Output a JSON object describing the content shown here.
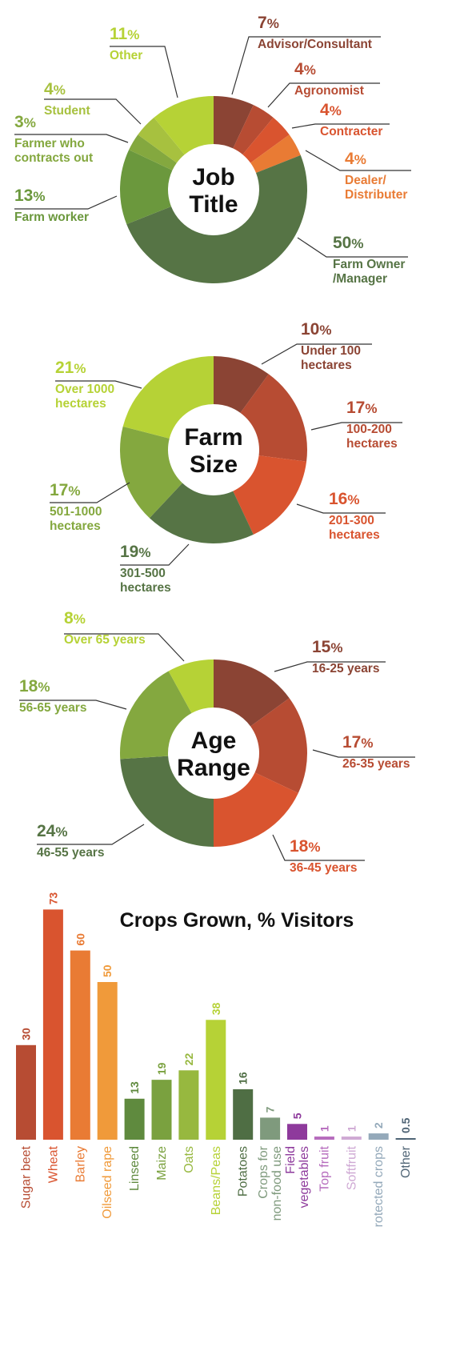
{
  "colors": {
    "dark_brown": "#8b4434",
    "rust": "#b74c33",
    "red_orange": "#d9542f",
    "orange": "#e97b34",
    "light_orange": "#f09a3a",
    "dark_green": "#567445",
    "mid_green": "#6b983d",
    "olive_green": "#84a83f",
    "yellow_green": "#a7c13f",
    "lime": "#b6d236"
  },
  "chart_data": [
    {
      "type": "pie",
      "title_lines": [
        "Job",
        "Title"
      ],
      "slices": [
        {
          "label_lines": [
            "Advisor/Consultant"
          ],
          "pct_num": "7",
          "value": 7,
          "color": "#8b4434"
        },
        {
          "label_lines": [
            "Agronomist"
          ],
          "pct_num": "4",
          "value": 4,
          "color": "#b74c33"
        },
        {
          "label_lines": [
            "Contracter"
          ],
          "pct_num": "4",
          "value": 4,
          "color": "#d9542f"
        },
        {
          "label_lines": [
            "Dealer/",
            "Distributer"
          ],
          "pct_num": "4",
          "value": 4,
          "color": "#e97b34"
        },
        {
          "label_lines": [
            "Farm Owner",
            "/Manager"
          ],
          "pct_num": "50",
          "value": 50,
          "color": "#567445"
        },
        {
          "label_lines": [
            "Farm worker"
          ],
          "pct_num": "13",
          "value": 13,
          "color": "#6b983d"
        },
        {
          "label_lines": [
            "Farmer who",
            "contracts out"
          ],
          "pct_num": "3",
          "value": 3,
          "color": "#84a83f"
        },
        {
          "label_lines": [
            "Student"
          ],
          "pct_num": "4",
          "value": 4,
          "color": "#a7c13f"
        },
        {
          "label_lines": [
            "Other"
          ],
          "pct_num": "11",
          "value": 11,
          "color": "#b6d236"
        }
      ]
    },
    {
      "type": "pie",
      "title_lines": [
        "Farm",
        "Size"
      ],
      "slices": [
        {
          "label_lines": [
            "Under 100",
            "hectares"
          ],
          "pct_num": "10",
          "value": 10,
          "color": "#8b4434"
        },
        {
          "label_lines": [
            "100-200",
            "hectares"
          ],
          "pct_num": "17",
          "value": 17,
          "color": "#b74c33"
        },
        {
          "label_lines": [
            "201-300",
            "hectares"
          ],
          "pct_num": "16",
          "value": 16,
          "color": "#d9542f"
        },
        {
          "label_lines": [
            "301-500",
            "hectares"
          ],
          "pct_num": "19",
          "value": 19,
          "color": "#567445"
        },
        {
          "label_lines": [
            "501-1000",
            "hectares"
          ],
          "pct_num": "17",
          "value": 17,
          "color": "#84a83f"
        },
        {
          "label_lines": [
            "Over 1000",
            "hectares"
          ],
          "pct_num": "21",
          "value": 21,
          "color": "#b6d236"
        }
      ]
    },
    {
      "type": "pie",
      "title_lines": [
        "Age",
        "Range"
      ],
      "slices": [
        {
          "label_lines": [
            "16-25 years"
          ],
          "pct_num": "15",
          "value": 15,
          "color": "#8b4434"
        },
        {
          "label_lines": [
            "26-35 years"
          ],
          "pct_num": "17",
          "value": 17,
          "color": "#b74c33"
        },
        {
          "label_lines": [
            "36-45 years"
          ],
          "pct_num": "18",
          "value": 18,
          "color": "#d9542f"
        },
        {
          "label_lines": [
            "46-55 years"
          ],
          "pct_num": "24",
          "value": 24,
          "color": "#567445"
        },
        {
          "label_lines": [
            "56-65 years"
          ],
          "pct_num": "18",
          "value": 18,
          "color": "#84a83f"
        },
        {
          "label_lines": [
            "Over 65 years"
          ],
          "pct_num": "8",
          "value": 8,
          "color": "#b6d236"
        }
      ]
    },
    {
      "type": "bar",
      "title": "Crops Grown, % Visitors",
      "ylim": [
        0,
        80
      ],
      "bars": [
        {
          "category_lines": [
            "Sugar beet"
          ],
          "value": 30,
          "value_label": "30",
          "color": "#b74c33"
        },
        {
          "category_lines": [
            "Wheat"
          ],
          "value": 73,
          "value_label": "73",
          "color": "#d9542f"
        },
        {
          "category_lines": [
            "Barley"
          ],
          "value": 60,
          "value_label": "60",
          "color": "#e97b34"
        },
        {
          "category_lines": [
            "Oilseed rape"
          ],
          "value": 50,
          "value_label": "50",
          "color": "#f09a3a"
        },
        {
          "category_lines": [
            "Linseed"
          ],
          "value": 13,
          "value_label": "13",
          "color": "#5f8a3e"
        },
        {
          "category_lines": [
            "Maize"
          ],
          "value": 19,
          "value_label": "19",
          "color": "#7aa13f"
        },
        {
          "category_lines": [
            "Oats"
          ],
          "value": 22,
          "value_label": "22",
          "color": "#97b83f"
        },
        {
          "category_lines": [
            "Beans/Peas"
          ],
          "value": 38,
          "value_label": "38",
          "color": "#b6d236"
        },
        {
          "category_lines": [
            "Potatoes"
          ],
          "value": 16,
          "value_label": "16",
          "color": "#4f6e44"
        },
        {
          "category_lines": [
            "Crops for",
            "non-food use"
          ],
          "value": 7,
          "value_label": "7",
          "color": "#7f9a7d"
        },
        {
          "category_lines": [
            "Field",
            "vegetables"
          ],
          "value": 5,
          "value_label": "5",
          "color": "#8e3a9c"
        },
        {
          "category_lines": [
            "Top fruit"
          ],
          "value": 1,
          "value_label": "1",
          "color": "#b66cbd"
        },
        {
          "category_lines": [
            "Softfruit"
          ],
          "value": 1,
          "value_label": "1",
          "color": "#cfa9d4"
        },
        {
          "category_lines": [
            "rotected crops"
          ],
          "value": 2,
          "value_label": "2",
          "color": "#94a9ba"
        },
        {
          "category_lines": [
            "Other"
          ],
          "value": 0.5,
          "value_label": "0.5",
          "color": "#4f6475"
        }
      ]
    }
  ]
}
